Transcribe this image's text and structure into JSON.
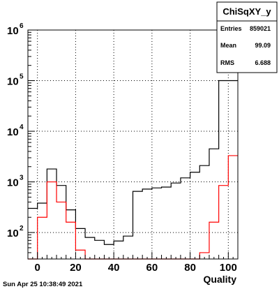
{
  "timestamp": "Sun Apr 25 10:38:49 2021",
  "stats_box": {
    "title": "ChiSqXY_y",
    "rows": [
      {
        "label": "Entries",
        "value": "859021"
      },
      {
        "label": "Mean",
        "value": "99.09"
      },
      {
        "label": "RMS",
        "value": "6.688"
      }
    ]
  },
  "colors": {
    "series_black": "#000000",
    "series_red": "#ff0000",
    "grid": "#000000"
  },
  "chart_data": {
    "type": "line",
    "step": true,
    "xlabel": "Quality",
    "ylabel": "",
    "log_y": true,
    "grid": true,
    "xlim": [
      -5,
      105
    ],
    "ylim": [
      30,
      1000000
    ],
    "x_ticks": [
      0,
      20,
      40,
      60,
      80,
      100
    ],
    "y_ticks": [
      {
        "base": "10",
        "exp": "2",
        "value": 100
      },
      {
        "base": "10",
        "exp": "3",
        "value": 1000
      },
      {
        "base": "10",
        "exp": "4",
        "value": 10000
      },
      {
        "base": "10",
        "exp": "5",
        "value": 100000
      },
      {
        "base": "10",
        "exp": "6",
        "value": 1000000
      }
    ],
    "bin_edges": [
      -5,
      0,
      5,
      10,
      15,
      20,
      25,
      30,
      35,
      40,
      45,
      50,
      55,
      60,
      65,
      70,
      75,
      80,
      85,
      90,
      95,
      100,
      105
    ],
    "series": [
      {
        "color": "#000000",
        "values": [
          300,
          380,
          1800,
          850,
          280,
          120,
          80,
          70,
          58,
          68,
          85,
          650,
          720,
          760,
          790,
          950,
          1200,
          1550,
          2100,
          4500,
          100000,
          100000
        ]
      },
      {
        "color": "#ff0000",
        "values": [
          30,
          200,
          1000,
          400,
          160,
          45,
          30,
          30,
          30,
          30,
          30,
          30,
          30,
          30,
          30,
          30,
          30,
          30,
          40,
          160,
          850,
          3300
        ]
      }
    ]
  }
}
